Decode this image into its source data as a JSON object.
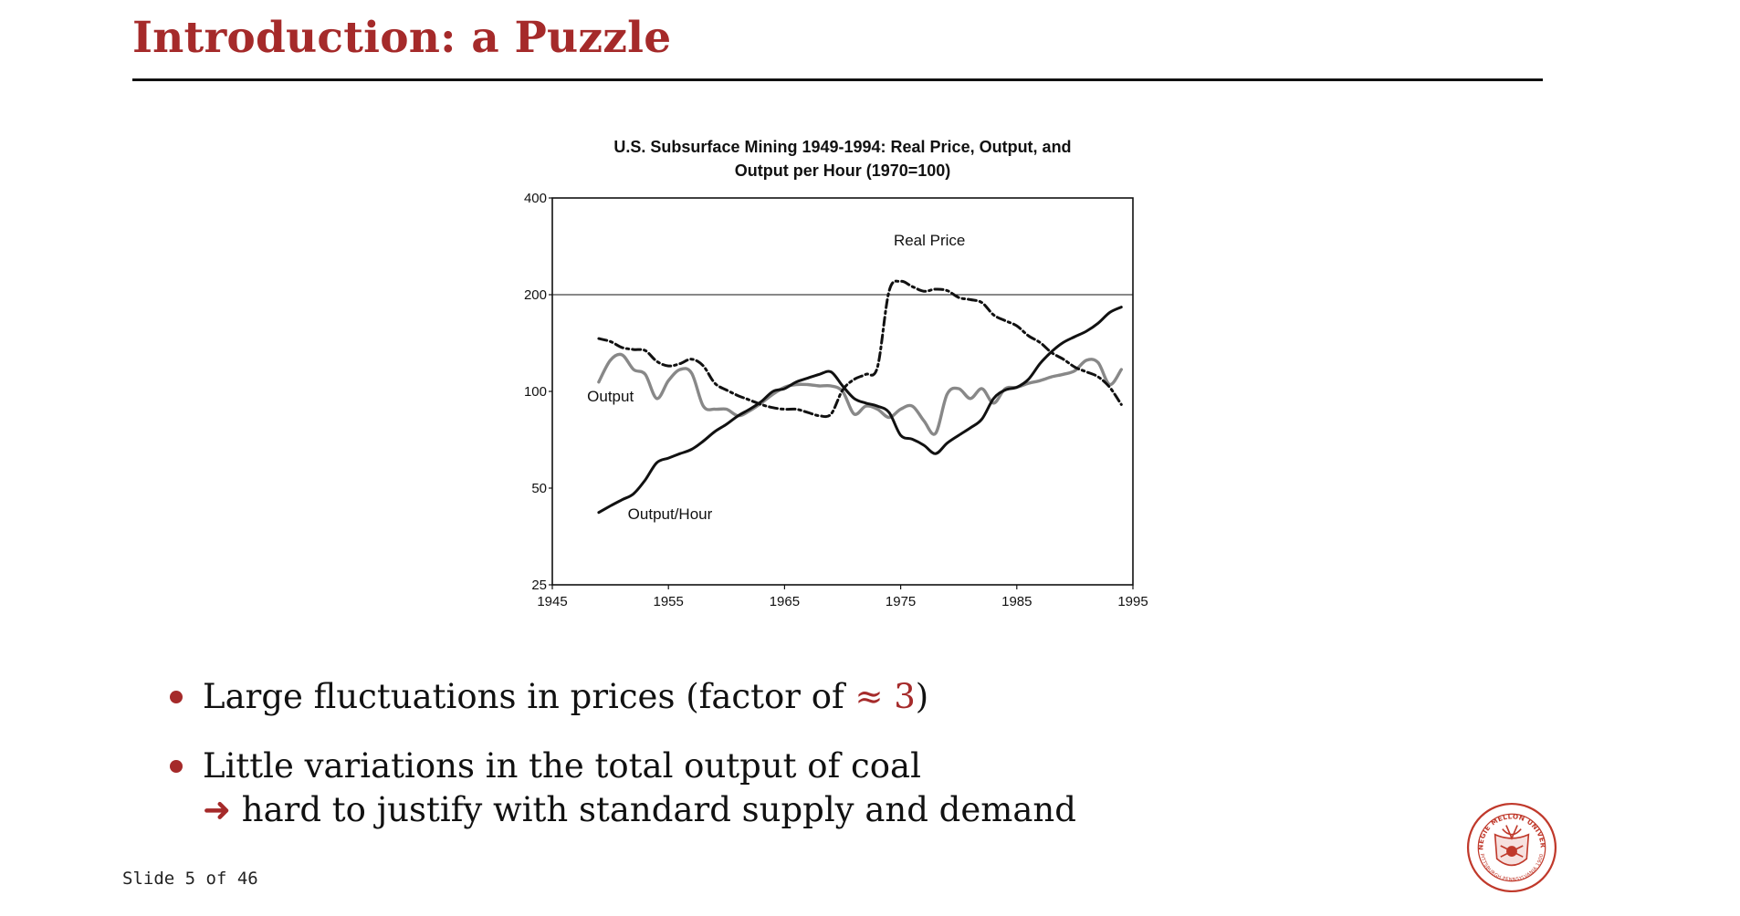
{
  "slide": {
    "title": "Introduction: a Puzzle",
    "footer": "Slide 5 of 46",
    "accent_color": "#a52a2a"
  },
  "bullets": [
    {
      "text": "Large fluctuations in prices (factor of ",
      "accent": "≈ 3",
      "after": ")"
    },
    {
      "text": "Little variations in the total output of coal",
      "arrow": "➜",
      "arrow_text": " hard to justify with standard supply and demand"
    }
  ],
  "logo": {
    "icon": "carnegie-mellon-seal-icon",
    "color": "#c0392b"
  },
  "chart_data": {
    "type": "line",
    "title_lines": [
      "U.S. Subsurface Mining 1949-1994: Real Price, Output, and",
      "Output per Hour (1970=100)"
    ],
    "xlabel": "",
    "ylabel": "",
    "xlim": [
      1945,
      1995
    ],
    "ylim": [
      25,
      400
    ],
    "yscale": "log",
    "x_ticks": [
      "1945",
      "1955",
      "1965",
      "1975",
      "1985",
      "1995"
    ],
    "y_ticks": [
      "25",
      "50",
      "100",
      "200",
      "400"
    ],
    "reference_line": 200,
    "grid": false,
    "series": [
      {
        "name": "Real Price",
        "style": "dash-dot",
        "color": "#111111",
        "label_at": [
          1974.4,
          285
        ],
        "points": [
          [
            1949,
            146
          ],
          [
            1950,
            143
          ],
          [
            1951,
            137
          ],
          [
            1952,
            135
          ],
          [
            1953,
            134
          ],
          [
            1954,
            124
          ],
          [
            1955,
            120
          ],
          [
            1956,
            122
          ],
          [
            1957,
            126
          ],
          [
            1958,
            120
          ],
          [
            1959,
            106
          ],
          [
            1960,
            101
          ],
          [
            1961,
            97
          ],
          [
            1962,
            94
          ],
          [
            1963,
            91
          ],
          [
            1964,
            89
          ],
          [
            1965,
            88
          ],
          [
            1966,
            88
          ],
          [
            1967,
            86
          ],
          [
            1968,
            84
          ],
          [
            1969,
            85
          ],
          [
            1970,
            101
          ],
          [
            1971,
            109
          ],
          [
            1972,
            113
          ],
          [
            1973,
            119
          ],
          [
            1974,
            205
          ],
          [
            1975,
            220
          ],
          [
            1976,
            212
          ],
          [
            1977,
            205
          ],
          [
            1978,
            208
          ],
          [
            1979,
            206
          ],
          [
            1980,
            196
          ],
          [
            1981,
            193
          ],
          [
            1982,
            189
          ],
          [
            1983,
            173
          ],
          [
            1984,
            166
          ],
          [
            1985,
            160
          ],
          [
            1986,
            149
          ],
          [
            1987,
            142
          ],
          [
            1988,
            132
          ],
          [
            1989,
            126
          ],
          [
            1990,
            119
          ],
          [
            1991,
            115
          ],
          [
            1992,
            111
          ],
          [
            1993,
            103
          ],
          [
            1994,
            91
          ]
        ]
      },
      {
        "name": "Output",
        "style": "solid",
        "color": "#888888",
        "label_at": [
          1948,
          93
        ],
        "points": [
          [
            1949,
            107
          ],
          [
            1950,
            125
          ],
          [
            1951,
            130
          ],
          [
            1952,
            117
          ],
          [
            1953,
            113
          ],
          [
            1954,
            95
          ],
          [
            1955,
            108
          ],
          [
            1956,
            117
          ],
          [
            1957,
            114
          ],
          [
            1958,
            90
          ],
          [
            1959,
            88
          ],
          [
            1960,
            88
          ],
          [
            1961,
            84
          ],
          [
            1962,
            87
          ],
          [
            1963,
            92
          ],
          [
            1964,
            98
          ],
          [
            1965,
            103
          ],
          [
            1966,
            105
          ],
          [
            1967,
            105
          ],
          [
            1968,
            104
          ],
          [
            1969,
            104
          ],
          [
            1970,
            100
          ],
          [
            1971,
            85
          ],
          [
            1972,
            90
          ],
          [
            1973,
            88
          ],
          [
            1974,
            83
          ],
          [
            1975,
            88
          ],
          [
            1976,
            90
          ],
          [
            1977,
            81
          ],
          [
            1978,
            74
          ],
          [
            1979,
            98
          ],
          [
            1980,
            102
          ],
          [
            1981,
            95
          ],
          [
            1982,
            102
          ],
          [
            1983,
            92
          ],
          [
            1984,
            102
          ],
          [
            1985,
            103
          ],
          [
            1986,
            106
          ],
          [
            1987,
            108
          ],
          [
            1988,
            111
          ],
          [
            1989,
            113
          ],
          [
            1990,
            116
          ],
          [
            1991,
            125
          ],
          [
            1992,
            123
          ],
          [
            1993,
            105
          ],
          [
            1994,
            117
          ]
        ]
      },
      {
        "name": "Output/Hour",
        "style": "solid",
        "color": "#111111",
        "label_at": [
          1951.5,
          40
        ],
        "points": [
          [
            1949,
            42
          ],
          [
            1950,
            44
          ],
          [
            1951,
            46
          ],
          [
            1952,
            48
          ],
          [
            1953,
            53
          ],
          [
            1954,
            60
          ],
          [
            1955,
            62
          ],
          [
            1956,
            64
          ],
          [
            1957,
            66
          ],
          [
            1958,
            70
          ],
          [
            1959,
            75
          ],
          [
            1960,
            79
          ],
          [
            1961,
            84
          ],
          [
            1962,
            88
          ],
          [
            1963,
            93
          ],
          [
            1964,
            100
          ],
          [
            1965,
            102
          ],
          [
            1966,
            107
          ],
          [
            1967,
            110
          ],
          [
            1968,
            113
          ],
          [
            1969,
            115
          ],
          [
            1970,
            104
          ],
          [
            1971,
            95
          ],
          [
            1972,
            92
          ],
          [
            1973,
            90
          ],
          [
            1974,
            86
          ],
          [
            1975,
            73
          ],
          [
            1976,
            71
          ],
          [
            1977,
            68
          ],
          [
            1978,
            64
          ],
          [
            1979,
            69
          ],
          [
            1980,
            73
          ],
          [
            1981,
            77
          ],
          [
            1982,
            82
          ],
          [
            1983,
            95
          ],
          [
            1984,
            101
          ],
          [
            1985,
            103
          ],
          [
            1986,
            109
          ],
          [
            1987,
            122
          ],
          [
            1988,
            133
          ],
          [
            1989,
            142
          ],
          [
            1990,
            148
          ],
          [
            1991,
            154
          ],
          [
            1992,
            163
          ],
          [
            1993,
            176
          ],
          [
            1994,
            183
          ]
        ]
      }
    ]
  }
}
